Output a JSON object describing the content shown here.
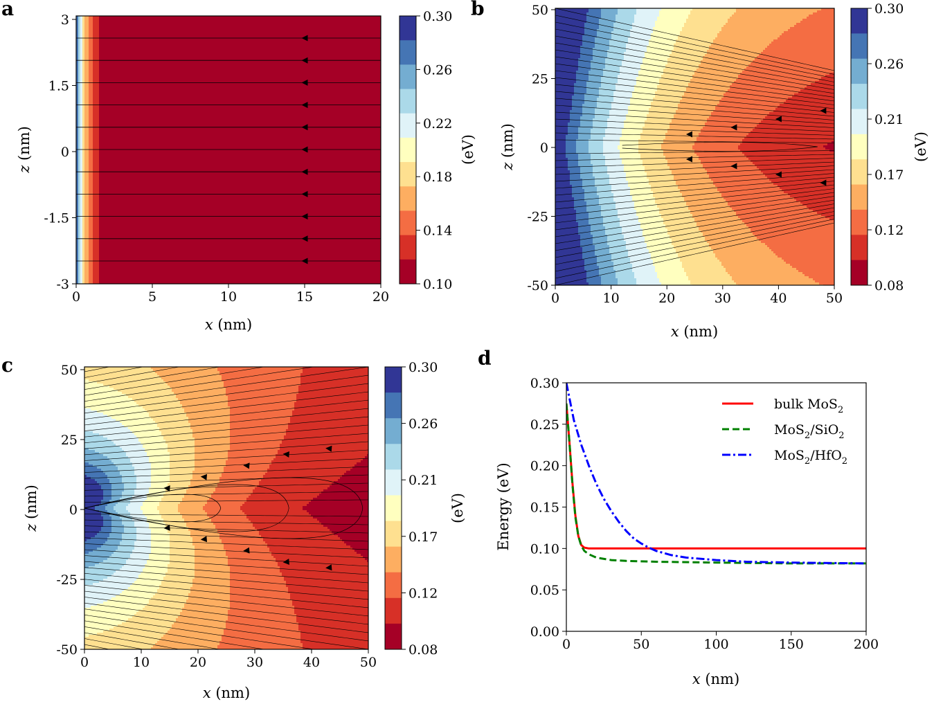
{
  "chart_data": [
    {
      "panel": "a",
      "type": "contour",
      "xlabel_var": "x",
      "xlabel_unit": "(nm)",
      "ylabel_var": "z",
      "ylabel_unit": "(nm)",
      "xlim": [
        0,
        20
      ],
      "ylim": [
        -3,
        3
      ],
      "xticks": [
        "0",
        "5",
        "10",
        "15",
        "20"
      ],
      "yticks": [
        "3",
        "1.5",
        "0",
        "-1.5",
        "-3"
      ],
      "colorbar": {
        "label": "(eV)",
        "ticks": [
          "0.30",
          "0.26",
          "0.22",
          "0.18",
          "0.14",
          "0.10"
        ],
        "range": [
          0.1,
          0.3
        ]
      },
      "field_lines": "horizontal, flowing toward x = 0, arrows at x ≈ 15 nm"
    },
    {
      "panel": "b",
      "type": "contour",
      "xlabel_var": "x",
      "xlabel_unit": "(nm)",
      "ylabel_var": "z",
      "ylabel_unit": "(nm)",
      "xlim": [
        0,
        50
      ],
      "ylim": [
        -50,
        50
      ],
      "xticks": [
        "0",
        "10",
        "20",
        "30",
        "40",
        "50"
      ],
      "yticks": [
        "50",
        "25",
        "0",
        "-25",
        "-50"
      ],
      "colorbar": {
        "label": "(eV)",
        "ticks": [
          "0.30",
          "0.26",
          "0.21",
          "0.17",
          "0.12",
          "0.08"
        ],
        "range": [
          0.08,
          0.3
        ]
      },
      "field_lines": "nearly horizontal, converging toward the z = 0 axis"
    },
    {
      "panel": "c",
      "type": "contour",
      "xlabel_var": "x",
      "xlabel_unit": "(nm)",
      "ylabel_var": "z",
      "ylabel_unit": "(nm)",
      "xlim": [
        0,
        50
      ],
      "ylim": [
        -50,
        50
      ],
      "xticks": [
        "0",
        "10",
        "20",
        "30",
        "40",
        "50"
      ],
      "yticks": [
        "50",
        "25",
        "0",
        "-25",
        "-50"
      ],
      "colorbar": {
        "label": "(eV)",
        "ticks": [
          "0.30",
          "0.26",
          "0.21",
          "0.17",
          "0.12",
          "0.08"
        ],
        "range": [
          0.08,
          0.3
        ]
      },
      "field_lines": "closed loops through the z = 0 axis"
    },
    {
      "panel": "d",
      "type": "line",
      "xlabel_var": "x",
      "xlabel_unit": "(nm)",
      "ylabel": "Energy (eV)",
      "xlim": [
        0,
        200
      ],
      "ylim": [
        0,
        0.3
      ],
      "xticks": [
        "0",
        "50",
        "100",
        "150",
        "200"
      ],
      "yticks": [
        "0.30",
        "0.25",
        "0.20",
        "0.15",
        "0.10",
        "0.05",
        "0.00"
      ],
      "series": [
        {
          "name": "bulk MoS2",
          "color": "#ff0000",
          "style": "solid",
          "x": [
            0,
            2,
            4,
            6,
            8,
            10,
            12,
            15,
            20,
            30,
            50,
            100,
            150,
            200
          ],
          "y": [
            0.275,
            0.23,
            0.18,
            0.14,
            0.115,
            0.104,
            0.101,
            0.1,
            0.1,
            0.1,
            0.1,
            0.1,
            0.1,
            0.1
          ]
        },
        {
          "name": "MoS2/SiO2",
          "color": "#008000",
          "style": "dashed",
          "x": [
            0,
            2,
            4,
            6,
            8,
            10,
            12,
            15,
            20,
            30,
            40,
            60,
            100,
            150,
            200
          ],
          "y": [
            0.275,
            0.23,
            0.178,
            0.138,
            0.115,
            0.103,
            0.097,
            0.093,
            0.089,
            0.086,
            0.085,
            0.084,
            0.083,
            0.082,
            0.082
          ]
        },
        {
          "name": "MoS2/HfO2",
          "color": "#0000ff",
          "style": "dashdot",
          "x": [
            0,
            5,
            10,
            15,
            20,
            25,
            30,
            35,
            40,
            45,
            50,
            55,
            60,
            70,
            80,
            100,
            120,
            150,
            200
          ],
          "y": [
            0.3,
            0.255,
            0.225,
            0.2,
            0.178,
            0.16,
            0.145,
            0.132,
            0.121,
            0.112,
            0.106,
            0.101,
            0.097,
            0.092,
            0.089,
            0.086,
            0.084,
            0.083,
            0.082
          ]
        }
      ],
      "legend": [
        {
          "base": "bulk MoS",
          "sub": "2",
          "rest": "",
          "sub2": ""
        },
        {
          "base": "MoS",
          "sub": "2",
          "rest": "/SiO",
          "sub2": "2"
        },
        {
          "base": "MoS",
          "sub": "2",
          "rest": "/HfO",
          "sub2": "2"
        }
      ],
      "legend_position": "upper right"
    }
  ],
  "panel_labels": [
    "a",
    "b",
    "c",
    "d"
  ],
  "colormap": [
    "#a50026",
    "#d73027",
    "#f46d43",
    "#fdae61",
    "#fee090",
    "#ffffbf",
    "#e0f3f8",
    "#abd9e9",
    "#74add1",
    "#4575b4",
    "#313695"
  ]
}
